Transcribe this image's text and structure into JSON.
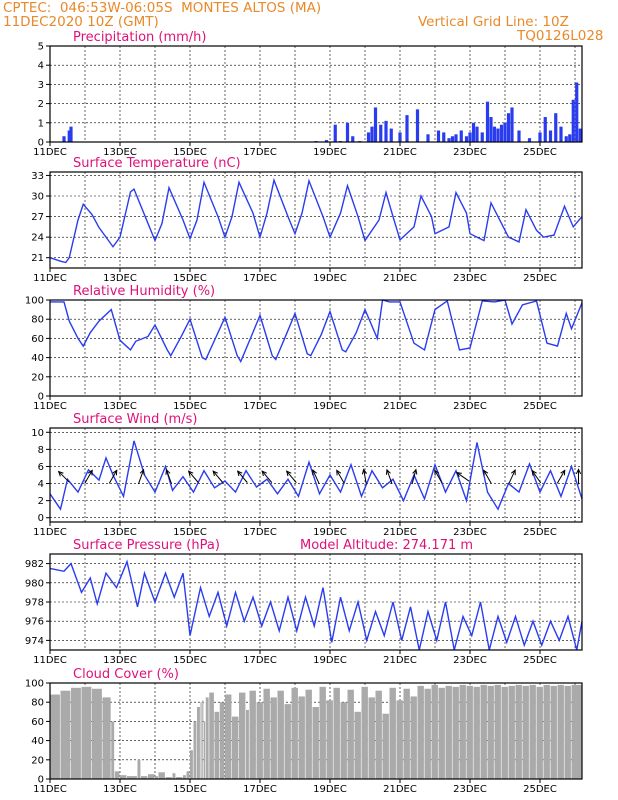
{
  "header": {
    "line1": "CPTEC:  046:53W-06:05S  MONTES ALTOS (MA)",
    "line2": "11DEC2020 10Z (GMT)",
    "grid_note": "Vertical Grid Line: 10Z",
    "code": "TQ0126L028"
  },
  "colors": {
    "header": "#e8892a",
    "title": "#e0107a",
    "series": "#2a3cf0",
    "cloud": "#aaaaaa",
    "arrow": "#000000"
  },
  "chart_data": [
    {
      "id": "precip",
      "type": "bar",
      "title": "Precipitation (mm/h)",
      "ylim": [
        0,
        5
      ],
      "yticks": [
        0,
        1,
        2,
        3,
        4,
        5
      ],
      "xlim": [
        0,
        15.2
      ],
      "xticks": [
        "11DEC",
        "13DEC",
        "15DEC",
        "17DEC",
        "19DEC",
        "21DEC",
        "23DEC",
        "25DEC"
      ],
      "x": [
        0.4,
        0.55,
        0.6,
        7.6,
        7.9,
        8.15,
        8.3,
        8.5,
        8.65,
        8.85,
        9.1,
        9.2,
        9.3,
        9.45,
        9.6,
        9.75,
        10.0,
        10.2,
        10.5,
        10.8,
        11.1,
        11.25,
        11.4,
        11.5,
        11.6,
        11.75,
        11.9,
        12.0,
        12.1,
        12.2,
        12.35,
        12.5,
        12.6,
        12.7,
        12.8,
        12.9,
        13.0,
        13.1,
        13.2,
        13.4,
        13.7,
        14.0,
        14.15,
        14.3,
        14.45,
        14.6,
        14.75,
        14.85,
        14.95,
        15.05,
        15.15
      ],
      "values": [
        0.3,
        0.6,
        0.8,
        0.05,
        0.1,
        0.9,
        0.05,
        1.0,
        0.3,
        0.05,
        0.5,
        0.8,
        1.8,
        0.9,
        1.1,
        0.7,
        0.5,
        1.4,
        1.7,
        0.4,
        0.6,
        0.5,
        0.2,
        0.3,
        0.4,
        0.6,
        0.3,
        0.5,
        1.0,
        0.8,
        0.5,
        2.1,
        1.3,
        0.8,
        0.7,
        0.9,
        1.0,
        1.5,
        1.8,
        0.6,
        0.2,
        0.5,
        1.3,
        0.6,
        1.5,
        0.8,
        0.3,
        0.4,
        2.2,
        3.1,
        0.7
      ]
    },
    {
      "id": "temp",
      "type": "line",
      "title": "Surface Temperature (nC)",
      "ylim": [
        19.5,
        33.5
      ],
      "yticks": [
        21,
        24,
        27,
        30,
        33
      ],
      "xlim": [
        0,
        15.2
      ],
      "xticks": [
        "11DEC",
        "13DEC",
        "15DEC",
        "17DEC",
        "19DEC",
        "21DEC",
        "23DEC",
        "25DEC"
      ],
      "x": [
        0.0,
        0.3,
        0.45,
        0.55,
        0.8,
        0.95,
        1.2,
        1.4,
        1.8,
        2.0,
        2.3,
        2.4,
        2.8,
        3.0,
        3.2,
        3.4,
        3.8,
        4.0,
        4.2,
        4.4,
        4.8,
        5.0,
        5.2,
        5.4,
        5.8,
        6.0,
        6.2,
        6.4,
        6.8,
        7.0,
        7.2,
        7.4,
        7.8,
        8.0,
        8.3,
        8.5,
        8.8,
        9.0,
        9.4,
        9.6,
        9.8,
        10.0,
        10.4,
        10.6,
        10.9,
        11.0,
        11.4,
        11.6,
        11.9,
        12.0,
        12.4,
        12.6,
        12.9,
        13.1,
        13.4,
        13.6,
        13.9,
        14.1,
        14.4,
        14.7,
        14.95,
        15.2
      ],
      "values": [
        21.0,
        20.5,
        20.3,
        21.0,
        26.5,
        28.8,
        27.3,
        25.4,
        22.6,
        24.0,
        30.6,
        31.0,
        26.0,
        23.5,
        26.0,
        31.2,
        26.5,
        23.8,
        26.5,
        32.0,
        27.0,
        24.0,
        27.0,
        32.0,
        27.5,
        24.0,
        27.5,
        32.3,
        27.0,
        24.5,
        27.5,
        32.2,
        27.0,
        24.0,
        27.5,
        31.5,
        27.0,
        23.5,
        26.5,
        30.5,
        27.0,
        23.6,
        25.5,
        30.0,
        27.0,
        24.5,
        25.5,
        30.5,
        27.5,
        24.5,
        23.5,
        29.0,
        26.0,
        24.0,
        23.3,
        28.0,
        25.0,
        24.0,
        24.3,
        28.5,
        25.5,
        27.0
      ]
    },
    {
      "id": "rh",
      "type": "line",
      "title": "Relative Humidity (%)",
      "ylim": [
        0,
        100
      ],
      "yticks": [
        0,
        20,
        40,
        60,
        80,
        100
      ],
      "xlim": [
        0,
        15.2
      ],
      "xticks": [
        "11DEC",
        "13DEC",
        "15DEC",
        "17DEC",
        "19DEC",
        "21DEC",
        "23DEC",
        "25DEC"
      ],
      "x": [
        0.0,
        0.4,
        0.55,
        0.8,
        0.95,
        1.15,
        1.4,
        1.75,
        2.0,
        2.3,
        2.45,
        2.8,
        3.0,
        3.35,
        3.45,
        3.75,
        4.0,
        4.35,
        4.45,
        4.75,
        5.0,
        5.35,
        5.45,
        5.75,
        6.0,
        6.35,
        6.45,
        6.75,
        7.0,
        7.35,
        7.45,
        7.75,
        8.0,
        8.35,
        8.45,
        8.75,
        9.0,
        9.35,
        9.5,
        9.7,
        10.0,
        10.4,
        10.7,
        11.0,
        11.35,
        11.7,
        12.0,
        12.35,
        12.7,
        13.0,
        13.2,
        13.5,
        13.9,
        14.2,
        14.5,
        14.75,
        14.9,
        15.2
      ],
      "values": [
        98,
        98,
        78,
        60,
        52,
        66,
        78,
        90,
        58,
        48,
        57,
        62,
        74,
        48,
        42,
        62,
        80,
        40,
        38,
        62,
        82,
        42,
        36,
        62,
        84,
        42,
        38,
        64,
        86,
        44,
        42,
        64,
        88,
        48,
        46,
        66,
        90,
        60,
        100,
        98,
        98,
        55,
        48,
        90,
        99,
        48,
        50,
        99,
        98,
        100,
        75,
        95,
        99,
        55,
        52,
        86,
        70,
        97
      ]
    },
    {
      "id": "wind",
      "type": "line",
      "title": "Surface Wind (m/s)",
      "ylim": [
        -0.5,
        10.5
      ],
      "yticks": [
        0,
        2,
        4,
        6,
        8,
        10
      ],
      "xlim": [
        0,
        15.2
      ],
      "xticks": [
        "11DEC",
        "13DEC",
        "15DEC",
        "17DEC",
        "19DEC",
        "21DEC",
        "23DEC",
        "25DEC"
      ],
      "x": [
        0.0,
        0.3,
        0.5,
        0.8,
        1.1,
        1.4,
        1.6,
        1.8,
        2.1,
        2.4,
        2.7,
        3.0,
        3.3,
        3.5,
        3.8,
        4.1,
        4.4,
        4.7,
        5.0,
        5.3,
        5.6,
        5.9,
        6.2,
        6.5,
        6.8,
        7.1,
        7.4,
        7.7,
        8.0,
        8.3,
        8.6,
        8.9,
        9.2,
        9.5,
        9.8,
        10.1,
        10.4,
        10.7,
        11.0,
        11.3,
        11.6,
        11.9,
        12.2,
        12.5,
        12.8,
        13.1,
        13.4,
        13.7,
        14.0,
        14.3,
        14.6,
        14.9,
        15.2
      ],
      "values": [
        2.8,
        1.0,
        4.5,
        3.0,
        5.6,
        4.4,
        7.0,
        5.0,
        2.5,
        9.0,
        5.0,
        3.0,
        6.0,
        3.2,
        4.8,
        3.0,
        5.5,
        3.5,
        4.3,
        3.0,
        5.5,
        3.6,
        4.5,
        2.8,
        4.5,
        2.5,
        6.5,
        2.8,
        5.0,
        3.0,
        6.2,
        2.5,
        5.5,
        3.5,
        4.5,
        2.0,
        5.0,
        2.2,
        6.2,
        3.0,
        5.5,
        2.0,
        8.8,
        3.0,
        1.0,
        4.0,
        3.0,
        6.3,
        3.0,
        5.5,
        2.5,
        6.0,
        2.2
      ],
      "arrows": [
        [
          0.4,
          225
        ],
        [
          1.1,
          300
        ],
        [
          1.8,
          300
        ],
        [
          2.6,
          290
        ],
        [
          3.4,
          250
        ],
        [
          4.1,
          230
        ],
        [
          4.8,
          230
        ],
        [
          5.5,
          230
        ],
        [
          6.2,
          230
        ],
        [
          6.9,
          230
        ],
        [
          7.6,
          245
        ],
        [
          8.3,
          240
        ],
        [
          9.0,
          260
        ],
        [
          9.7,
          250
        ],
        [
          10.4,
          285
        ],
        [
          11.1,
          240
        ],
        [
          11.8,
          215
        ],
        [
          12.5,
          240
        ],
        [
          13.2,
          295
        ],
        [
          13.9,
          235
        ],
        [
          14.6,
          300
        ],
        [
          15.1,
          270
        ]
      ]
    },
    {
      "id": "press",
      "type": "line",
      "title": "Surface Pressure (hPa)",
      "annotation": "Model Altitude: 274.171 m",
      "ylim": [
        973.0,
        983.0
      ],
      "yticks": [
        974,
        976,
        978,
        980,
        982
      ],
      "xlim": [
        0,
        15.2
      ],
      "xticks": [
        "11DEC",
        "13DEC",
        "15DEC",
        "17DEC",
        "19DEC",
        "21DEC",
        "23DEC",
        "25DEC"
      ],
      "x": [
        0.0,
        0.4,
        0.6,
        0.9,
        1.15,
        1.35,
        1.6,
        1.9,
        2.2,
        2.5,
        2.7,
        3.0,
        3.3,
        3.55,
        3.8,
        4.0,
        4.3,
        4.55,
        4.8,
        5.05,
        5.3,
        5.55,
        5.8,
        6.05,
        6.3,
        6.55,
        6.8,
        7.05,
        7.3,
        7.55,
        7.8,
        8.05,
        8.3,
        8.55,
        8.8,
        9.05,
        9.3,
        9.55,
        9.8,
        10.05,
        10.3,
        10.55,
        10.8,
        11.05,
        11.3,
        11.55,
        11.8,
        12.05,
        12.3,
        12.55,
        12.8,
        13.05,
        13.3,
        13.55,
        13.8,
        14.05,
        14.3,
        14.55,
        14.8,
        15.05,
        15.2
      ],
      "values": [
        981.5,
        981.2,
        982.0,
        979.0,
        980.5,
        977.8,
        981.0,
        979.5,
        982.2,
        977.5,
        981.0,
        978.0,
        981.0,
        978.5,
        981.0,
        974.5,
        979.5,
        976.5,
        979.0,
        975.5,
        979.0,
        976.0,
        978.5,
        975.5,
        978.0,
        975.0,
        978.5,
        975.0,
        978.5,
        975.5,
        979.5,
        973.8,
        978.5,
        975.0,
        978.0,
        974.0,
        977.0,
        974.5,
        978.0,
        974.0,
        977.5,
        973.0,
        977.0,
        974.0,
        978.0,
        973.0,
        976.5,
        974.5,
        978.0,
        973.0,
        976.5,
        973.8,
        976.5,
        973.5,
        976.0,
        973.5,
        976.0,
        974.0,
        976.5,
        973.0,
        976.0
      ]
    },
    {
      "id": "cloud",
      "type": "area",
      "title": "Cloud Cover (%)",
      "ylim": [
        0,
        100
      ],
      "yticks": [
        0,
        20,
        40,
        60,
        80,
        100
      ],
      "xlim": [
        0,
        15.2
      ],
      "xticks": [
        "11DEC",
        "13DEC",
        "15DEC",
        "17DEC",
        "19DEC",
        "21DEC",
        "23DEC",
        "25DEC"
      ],
      "x": [
        0.0,
        0.3,
        0.6,
        0.9,
        1.2,
        1.5,
        1.75,
        1.85,
        2.0,
        2.2,
        2.5,
        2.6,
        2.8,
        3.0,
        3.1,
        3.3,
        3.5,
        3.6,
        3.8,
        3.9,
        4.0,
        4.1,
        4.2,
        4.3,
        4.35,
        4.4,
        4.45,
        4.55,
        4.7,
        4.85,
        5.0,
        5.2,
        5.4,
        5.6,
        5.7,
        5.9,
        6.1,
        6.3,
        6.5,
        6.7,
        6.9,
        7.1,
        7.3,
        7.5,
        7.7,
        7.9,
        8.1,
        8.3,
        8.5,
        8.7,
        8.9,
        9.1,
        9.3,
        9.5,
        9.7,
        9.9,
        10.1,
        10.3,
        10.5,
        10.7,
        10.9,
        11.1,
        11.3,
        11.5,
        11.7,
        11.9,
        12.1,
        12.3,
        12.5,
        12.7,
        12.9,
        13.1,
        13.3,
        13.5,
        13.7,
        13.9,
        14.1,
        14.3,
        14.5,
        14.7,
        14.9,
        15.2
      ],
      "values": [
        88,
        92,
        95,
        96,
        94,
        85,
        60,
        8,
        4,
        3,
        20,
        3,
        5,
        3,
        7,
        2,
        6,
        2,
        4,
        8,
        30,
        60,
        75,
        80,
        82,
        60,
        85,
        90,
        70,
        80,
        88,
        65,
        90,
        72,
        92,
        80,
        94,
        85,
        92,
        78,
        95,
        86,
        93,
        75,
        96,
        82,
        95,
        80,
        93,
        70,
        96,
        85,
        92,
        68,
        95,
        82,
        94,
        86,
        97,
        94,
        98,
        95,
        97,
        96,
        98,
        97,
        96,
        98,
        97,
        98,
        96,
        97,
        98,
        97,
        98,
        96,
        98,
        97,
        98,
        97,
        98,
        98
      ]
    }
  ]
}
